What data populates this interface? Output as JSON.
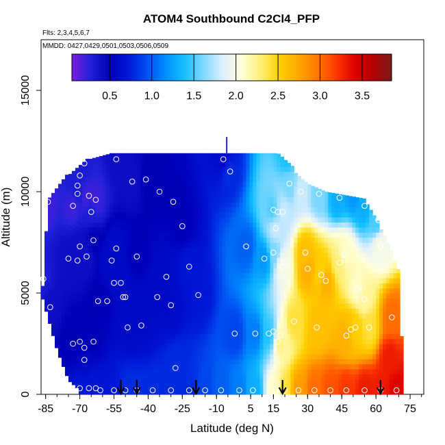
{
  "chart_data": {
    "type": "heatmap",
    "title": "ATOM4 Southbound C2Cl4_PFP",
    "flights_label": "Flts: 2,3,4,5,6,7",
    "mmdd_label": "MMDD: 0427,0429,0501,0503,0506,0509",
    "xlabel": "Latitude (deg N)",
    "ylabel": "Altitude (m)",
    "xlim": [
      -87,
      81
    ],
    "ylim": [
      0,
      17500
    ],
    "x_ticks": [
      "-85",
      "-70",
      "-55",
      "-40",
      "-25",
      "-10",
      "5",
      "15",
      "30",
      "45",
      "60",
      "75"
    ],
    "y_ticks": [
      "0",
      "5000",
      "10000",
      "15000"
    ],
    "colorbar": {
      "range": [
        0.05,
        3.85
      ],
      "ticks": [
        "0.5",
        "1.0",
        "1.5",
        "2.0",
        "2.5",
        "3.0",
        "3.5"
      ],
      "colors": [
        "#7a1ee0",
        "#2020d8",
        "#0000b8",
        "#0018d8",
        "#0050f0",
        "#0090ff",
        "#14c0ff",
        "#80d8ff",
        "#dceeff",
        "#ffffdc",
        "#fff07a",
        "#ffd000",
        "#ffaa00",
        "#ff7a00",
        "#ff3c00",
        "#e00000",
        "#b40000",
        "#7a1a1a"
      ]
    },
    "field_description": "mixing ratio field vs latitude and altitude",
    "grid": false,
    "samples": [
      [
        -85,
        9500,
        0.2
      ],
      [
        -87,
        5700,
        0.3
      ],
      [
        -83,
        4300,
        0.4
      ],
      [
        -68,
        11400,
        0.3
      ],
      [
        -70,
        10800,
        0.3
      ],
      [
        -72,
        10300,
        0.3
      ],
      [
        -71,
        9900,
        0.3
      ],
      [
        -73,
        9300,
        0.2
      ],
      [
        -67,
        9800,
        0.2
      ],
      [
        -63,
        9600,
        0.2
      ],
      [
        -65,
        9000,
        0.3
      ],
      [
        -70,
        7300,
        0.4
      ],
      [
        -75,
        6700,
        0.4
      ],
      [
        -71,
        6600,
        0.4
      ],
      [
        -67,
        6800,
        0.4
      ],
      [
        -64,
        7600,
        0.5
      ],
      [
        -62,
        4600,
        0.5
      ],
      [
        -58,
        4600,
        0.5
      ],
      [
        -71,
        2600,
        0.5
      ],
      [
        -73,
        2500,
        0.5
      ],
      [
        -69,
        2300,
        0.5
      ],
      [
        -64,
        2600,
        0.5
      ],
      [
        -68,
        1700,
        0.6
      ],
      [
        -70,
        300,
        0.7
      ],
      [
        -65,
        300,
        0.7
      ],
      [
        -61,
        300,
        0.7
      ],
      [
        -57,
        6600,
        0.6
      ],
      [
        -55,
        5500,
        0.6
      ],
      [
        -53,
        5500,
        0.6
      ],
      [
        -52,
        4800,
        0.6
      ],
      [
        -55,
        7200,
        0.6
      ],
      [
        -54,
        11600,
        0.4
      ],
      [
        -47,
        10500,
        0.4
      ],
      [
        -40,
        10600,
        0.5
      ],
      [
        -35,
        10000,
        0.5
      ],
      [
        -28,
        9500,
        0.5
      ],
      [
        -25,
        8300,
        0.5
      ],
      [
        -45,
        6800,
        0.5
      ],
      [
        -50,
        4800,
        0.6
      ],
      [
        -43,
        3400,
        0.6
      ],
      [
        -48,
        3300,
        0.6
      ],
      [
        -32,
        5800,
        0.6
      ],
      [
        -36,
        4800,
        0.6
      ],
      [
        -30,
        4400,
        0.6
      ],
      [
        -22,
        6300,
        0.7
      ],
      [
        -18,
        4900,
        0.7
      ],
      [
        -28,
        1300,
        0.8
      ],
      [
        -55,
        200,
        0.7
      ],
      [
        -50,
        200,
        0.8
      ],
      [
        -45,
        200,
        0.8
      ],
      [
        -38,
        200,
        0.8
      ],
      [
        -30,
        200,
        0.8
      ],
      [
        -22,
        200,
        0.8
      ],
      [
        -15,
        200,
        0.9
      ],
      [
        -8,
        200,
        1.0
      ],
      [
        0,
        200,
        1.1
      ],
      [
        6,
        200,
        1.3
      ],
      [
        -7,
        11600,
        0.6
      ],
      [
        -5,
        11000,
        0.8
      ],
      [
        -2,
        3000,
        0.9
      ],
      [
        3,
        7300,
        1.0
      ],
      [
        7,
        3000,
        1.1
      ],
      [
        11,
        6700,
        1.2
      ],
      [
        13,
        3000,
        1.4
      ],
      [
        14,
        3100,
        1.5
      ],
      [
        15,
        7000,
        1.6
      ],
      [
        15,
        9100,
        1.5
      ],
      [
        17,
        9000,
        1.7
      ],
      [
        19,
        9000,
        1.8
      ],
      [
        16,
        8200,
        1.8
      ],
      [
        19,
        6300,
        2.0
      ],
      [
        18,
        2900,
        2.1
      ],
      [
        18,
        2700,
        2.3
      ],
      [
        21,
        11700,
        1.4
      ],
      [
        22,
        10400,
        1.6
      ],
      [
        27,
        10000,
        1.8
      ],
      [
        35,
        9900,
        1.6
      ],
      [
        43,
        9700,
        1.3
      ],
      [
        50,
        10000,
        1.2
      ],
      [
        55,
        9300,
        1.3
      ],
      [
        60,
        8600,
        1.5
      ],
      [
        62,
        7300,
        2.0
      ],
      [
        29,
        7000,
        2.6
      ],
      [
        30,
        6200,
        2.7
      ],
      [
        36,
        6000,
        2.5
      ],
      [
        38,
        5600,
        2.7
      ],
      [
        44,
        6500,
        2.3
      ],
      [
        46,
        6900,
        2.1
      ],
      [
        52,
        5200,
        2.1
      ],
      [
        55,
        4700,
        2.2
      ],
      [
        49,
        3200,
        2.6
      ],
      [
        51,
        3300,
        2.5
      ],
      [
        57,
        3300,
        2.4
      ],
      [
        47,
        2900,
        2.7
      ],
      [
        34,
        3300,
        2.6
      ],
      [
        24,
        3600,
        2.4
      ],
      [
        16,
        200,
        2.1
      ],
      [
        20,
        200,
        2.4
      ],
      [
        26,
        200,
        2.8
      ],
      [
        33,
        200,
        3.0
      ],
      [
        40,
        200,
        3.1
      ],
      [
        47,
        200,
        3.2
      ],
      [
        55,
        200,
        3.3
      ],
      [
        62,
        200,
        3.3
      ],
      [
        69,
        200,
        3.4
      ],
      [
        67,
        3800,
        3.0
      ],
      [
        66,
        1800,
        3.3
      ]
    ],
    "markers": [
      [
        -84,
        9500
      ],
      [
        -86,
        5700
      ],
      [
        -83,
        4300
      ],
      [
        -68,
        11400
      ],
      [
        -70,
        10800
      ],
      [
        -71,
        10300
      ],
      [
        -71,
        9900
      ],
      [
        -73,
        9300
      ],
      [
        -66,
        9800
      ],
      [
        -63,
        9600
      ],
      [
        -65,
        9000
      ],
      [
        -70,
        7300
      ],
      [
        -75,
        6700
      ],
      [
        -71,
        6600
      ],
      [
        -67,
        6800
      ],
      [
        -64,
        7600
      ],
      [
        -62,
        4600
      ],
      [
        -58,
        4600
      ],
      [
        -70,
        2600
      ],
      [
        -73,
        2500
      ],
      [
        -68,
        2300
      ],
      [
        -64,
        2600
      ],
      [
        -68,
        1700
      ],
      [
        -70,
        300
      ],
      [
        -66,
        300
      ],
      [
        -63,
        300
      ],
      [
        -61,
        200
      ],
      [
        -56,
        6600
      ],
      [
        -55,
        5500
      ],
      [
        -52,
        5500
      ],
      [
        -51,
        4800
      ],
      [
        -54,
        7200
      ],
      [
        -54,
        11600
      ],
      [
        -47,
        10500
      ],
      [
        -41,
        10600
      ],
      [
        -35,
        10000
      ],
      [
        -29,
        9500
      ],
      [
        -25,
        8300
      ],
      [
        -45,
        6800
      ],
      [
        -50,
        4800
      ],
      [
        -43,
        3400
      ],
      [
        -49,
        3300
      ],
      [
        -32,
        5800
      ],
      [
        -36,
        4800
      ],
      [
        -30,
        4400
      ],
      [
        -22,
        6300
      ],
      [
        -18,
        4900
      ],
      [
        -28,
        1300
      ],
      [
        -55,
        200
      ],
      [
        -50,
        200
      ],
      [
        -45,
        200
      ],
      [
        -38,
        200
      ],
      [
        -30,
        200
      ],
      [
        -22,
        200
      ],
      [
        -15,
        200
      ],
      [
        -8,
        200
      ],
      [
        0,
        200
      ],
      [
        6,
        200
      ],
      [
        -7,
        11600
      ],
      [
        -4,
        11000
      ],
      [
        -2,
        3000
      ],
      [
        3,
        7300
      ],
      [
        7,
        3000
      ],
      [
        11,
        6700
      ],
      [
        13,
        3000
      ],
      [
        15,
        3100
      ],
      [
        15,
        7000
      ],
      [
        15,
        9100
      ],
      [
        17,
        9000
      ],
      [
        19,
        9000
      ],
      [
        16,
        8200
      ],
      [
        19,
        6300
      ],
      [
        18,
        2900
      ],
      [
        17,
        2600
      ],
      [
        21,
        11700
      ],
      [
        22,
        10400
      ],
      [
        27,
        10000
      ],
      [
        35,
        9900
      ],
      [
        44,
        9700
      ],
      [
        50,
        10000
      ],
      [
        55,
        9300
      ],
      [
        61,
        8600
      ],
      [
        62,
        7300
      ],
      [
        29,
        7000
      ],
      [
        30,
        6200
      ],
      [
        36,
        5900
      ],
      [
        38,
        5600
      ],
      [
        44,
        6500
      ],
      [
        46,
        6900
      ],
      [
        52,
        5200
      ],
      [
        55,
        4700
      ],
      [
        49,
        3200
      ],
      [
        51,
        3300
      ],
      [
        57,
        3300
      ],
      [
        47,
        2900
      ],
      [
        34,
        3300
      ],
      [
        24,
        3600
      ],
      [
        16,
        200
      ],
      [
        20,
        200
      ],
      [
        26,
        200
      ],
      [
        33,
        200
      ],
      [
        40,
        200
      ],
      [
        47,
        200
      ],
      [
        55,
        200
      ],
      [
        62,
        200
      ],
      [
        69,
        200
      ],
      [
        67,
        3800
      ]
    ],
    "arrows_lat": [
      -52,
      -45,
      -19,
      19,
      62
    ]
  }
}
